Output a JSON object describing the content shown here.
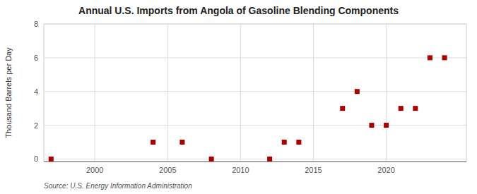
{
  "chart_data": {
    "type": "scatter",
    "title": "Annual U.S. Imports from Angola of Gasoline Blending Components",
    "y_label": "Thousand Barrels per Day",
    "source": "Source: U.S. Energy Information Administration",
    "x": [
      1997,
      2004,
      2006,
      2008,
      2012,
      2013,
      2014,
      2017,
      2018,
      2019,
      2020,
      2021,
      2022,
      2023,
      2024
    ],
    "values": [
      0,
      1,
      1,
      0,
      0,
      1,
      1,
      3,
      4,
      2,
      2,
      3,
      3,
      6,
      6
    ],
    "color": "#aa0000",
    "marker": "square",
    "xlim": [
      1996.5,
      2025.5
    ],
    "ylim": [
      -0.15,
      8
    ],
    "xticks": [
      2000,
      2005,
      2010,
      2015,
      2020
    ],
    "yticks": [
      0,
      2,
      4,
      6,
      8
    ],
    "grid": true
  }
}
